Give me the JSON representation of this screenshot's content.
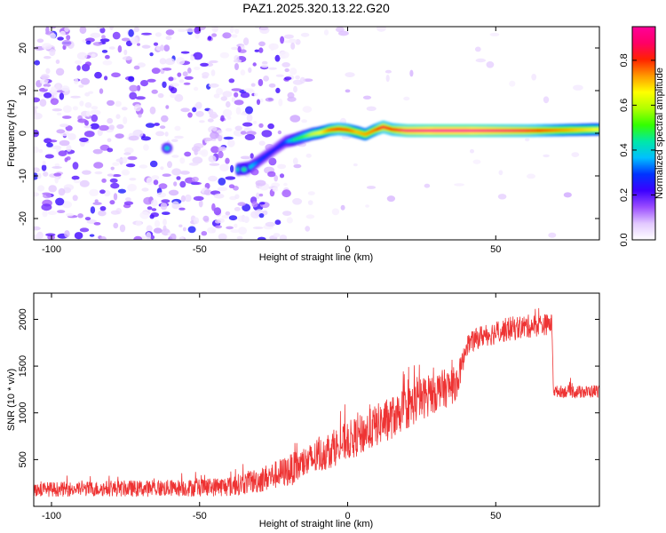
{
  "chart_data": [
    {
      "type": "heatmap",
      "title": "PAZ1.2025.320.13.22.G20",
      "xlabel": "Height of straight line (km)",
      "ylabel": "Frequency (Hz)",
      "xlim": [
        -106,
        85
      ],
      "ylim": [
        -25,
        25
      ],
      "xticks": [
        "-100",
        "-50",
        "0",
        "50"
      ],
      "yticks": [
        "-20",
        "-10",
        "0",
        "10",
        "20"
      ],
      "colorbar": {
        "label": "Normalized spectral amplitude",
        "range": [
          0,
          0.95
        ],
        "ticks": [
          "0.0",
          "0.2",
          "0.4",
          "0.6",
          "0.8"
        ],
        "colors": [
          "#ffffff",
          "#e2c8ff",
          "#9a4dff",
          "#3c00ff",
          "#0033ff",
          "#00bfff",
          "#00e8a8",
          "#33ff00",
          "#b0ff00",
          "#ffff00",
          "#ff9900",
          "#ff2200",
          "#ff0066",
          "#ff0099"
        ]
      },
      "ridge": {
        "x": [
          -37,
          -33,
          -30,
          -27,
          -24,
          -21,
          -18,
          -15,
          -12,
          -9,
          -6,
          -3,
          0,
          3,
          6,
          9,
          12,
          15,
          20,
          30,
          40,
          50,
          60,
          70,
          85
        ],
        "y": [
          -8.5,
          -8,
          -6.5,
          -5,
          -3.5,
          -2,
          -1.5,
          -0.8,
          -0.2,
          0.2,
          0.8,
          1.0,
          0.8,
          0.3,
          -0.3,
          0.7,
          1.5,
          0.9,
          0.6,
          0.6,
          0.6,
          0.6,
          0.6,
          0.7,
          0.9
        ],
        "amplitude": [
          0.45,
          0.4,
          0.3,
          0.28,
          0.25,
          0.3,
          0.45,
          0.5,
          0.6,
          0.65,
          0.75,
          0.8,
          0.78,
          0.7,
          0.72,
          0.75,
          0.85,
          0.8,
          0.9,
          0.95,
          0.95,
          0.9,
          0.85,
          0.75,
          0.65
        ]
      },
      "hotspots": [
        {
          "x": -61,
          "y": -3.5,
          "amplitude": 0.4
        },
        {
          "x": -35,
          "y": -8.5,
          "amplitude": 0.45
        }
      ]
    },
    {
      "type": "line",
      "xlabel": "Height of straight line (km)",
      "ylabel": "SNR (10 * v/v)",
      "xlim": [
        -106,
        85
      ],
      "ylim": [
        0,
        2280
      ],
      "xticks": [
        "-100",
        "-50",
        "0",
        "50"
      ],
      "yticks": [
        "500",
        "1000",
        "1500",
        "2000"
      ],
      "color": "#ee3333",
      "series": [
        {
          "name": "SNR",
          "x": [
            -106,
            -90,
            -80,
            -70,
            -60,
            -50,
            -40,
            -35,
            -30,
            -25,
            -20,
            -15,
            -10,
            -5,
            0,
            5,
            10,
            15,
            20,
            25,
            30,
            35,
            37,
            39,
            40,
            45,
            50,
            55,
            60,
            65,
            69,
            69.5,
            75,
            80,
            85
          ],
          "mean": [
            180,
            185,
            190,
            190,
            195,
            200,
            215,
            245,
            280,
            330,
            380,
            450,
            530,
            620,
            700,
            770,
            870,
            950,
            1050,
            1150,
            1230,
            1280,
            1330,
            1560,
            1720,
            1820,
            1860,
            1900,
            1920,
            1940,
            1950,
            1230,
            1230,
            1220,
            1240
          ],
          "spread": [
            80,
            80,
            85,
            90,
            90,
            95,
            110,
            120,
            140,
            150,
            170,
            180,
            190,
            200,
            210,
            220,
            230,
            230,
            230,
            230,
            220,
            200,
            180,
            120,
            110,
            120,
            130,
            130,
            130,
            120,
            110,
            60,
            70,
            70,
            70
          ]
        }
      ]
    }
  ]
}
